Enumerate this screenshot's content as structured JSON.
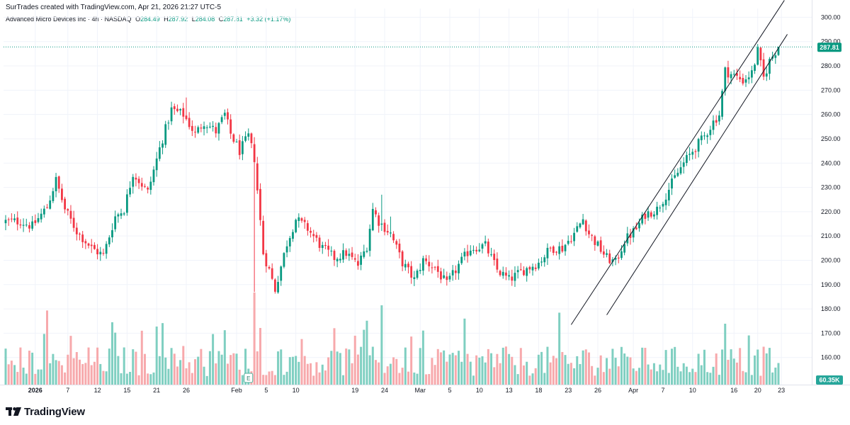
{
  "header": {
    "created_by": "SurTrades created with TradingView.com, Apr 21, 2026 21:27 UTC-5"
  },
  "legend": {
    "symbol": "Advanced Micro Devices Inc · 4h · NASDAQ",
    "o_label": "O",
    "o": "284.49",
    "h_label": "H",
    "h": "287.92",
    "l_label": "L",
    "l": "284.08",
    "c_label": "C",
    "c": "287.81",
    "change": "+3.32 (+1.17%)"
  },
  "footer": {
    "logo_text": "TradingView"
  },
  "colors": {
    "up": "#089981",
    "down": "#F23645",
    "up_volume": "#7FCFC1",
    "down_volume": "#F7A9AC",
    "price_badge": "#089981",
    "volume_badge": "#26A69A",
    "grid": "#F0F3FA"
  },
  "chart_data": {
    "type": "candlestick",
    "symbol": "AMD",
    "timeframe": "4h",
    "y_axis": {
      "ticks": [
        300,
        290,
        280,
        270,
        260,
        250,
        240,
        230,
        220,
        210,
        200,
        190,
        180,
        170,
        160
      ],
      "range": [
        146.5,
        304.5
      ]
    },
    "x_axis": {
      "labels": [
        "2026",
        "7",
        "12",
        "15",
        "21",
        "26",
        "Feb",
        "5",
        "10",
        "19",
        "24",
        "Mar",
        "5",
        "10",
        "13",
        "18",
        "23",
        "26",
        "Apr",
        "7",
        "10",
        "16",
        "20",
        "23"
      ],
      "label_bar_index": [
        10,
        21,
        31,
        41,
        51,
        61,
        78,
        88,
        98,
        118,
        128,
        140,
        150,
        160,
        170,
        180,
        190,
        200,
        212,
        222,
        232,
        246,
        254,
        262
      ]
    },
    "last_price": "287.81",
    "price_line_level": 287.81,
    "last_volume": "60.35K",
    "earnings_marker": {
      "label": "E",
      "bar_index": 82
    },
    "channel_lines": [
      {
        "from": [
          191,
          173.5
        ],
        "to": [
          263,
          307
        ]
      },
      {
        "from": [
          203,
          177.5
        ],
        "to": [
          264,
          293
        ]
      }
    ],
    "anchors": [
      [
        0,
        216
      ],
      [
        5,
        216
      ],
      [
        9,
        214
      ],
      [
        14,
        222
      ],
      [
        17,
        233
      ],
      [
        20,
        221
      ],
      [
        24,
        212
      ],
      [
        29,
        205
      ],
      [
        33,
        202
      ],
      [
        37,
        218
      ],
      [
        40,
        221
      ],
      [
        43,
        236
      ],
      [
        48,
        228
      ],
      [
        52,
        246
      ],
      [
        56,
        262
      ],
      [
        60,
        260
      ],
      [
        64,
        252
      ],
      [
        67,
        257
      ],
      [
        71,
        253
      ],
      [
        74,
        260
      ],
      [
        76,
        252
      ],
      [
        79,
        245
      ],
      [
        82,
        251
      ],
      [
        84,
        242
      ],
      [
        86,
        216
      ],
      [
        87,
        203
      ],
      [
        89,
        196
      ],
      [
        91,
        188
      ],
      [
        95,
        207
      ],
      [
        98,
        217
      ],
      [
        102,
        213
      ],
      [
        107,
        205
      ],
      [
        111,
        201
      ],
      [
        115,
        203
      ],
      [
        119,
        198
      ],
      [
        122,
        206
      ],
      [
        124,
        221
      ],
      [
        126,
        216
      ],
      [
        130,
        211
      ],
      [
        134,
        199
      ],
      [
        138,
        192
      ],
      [
        141,
        200
      ],
      [
        145,
        197
      ],
      [
        149,
        190
      ],
      [
        153,
        198
      ],
      [
        157,
        205
      ],
      [
        162,
        206
      ],
      [
        166,
        196
      ],
      [
        170,
        192
      ],
      [
        175,
        196
      ],
      [
        180,
        199
      ],
      [
        184,
        205
      ],
      [
        188,
        205
      ],
      [
        192,
        211
      ],
      [
        195,
        217
      ],
      [
        197,
        211
      ],
      [
        200,
        206
      ],
      [
        203,
        201
      ],
      [
        206,
        199
      ],
      [
        209,
        208
      ],
      [
        213,
        213
      ],
      [
        216,
        219
      ],
      [
        220,
        221
      ],
      [
        223,
        227
      ],
      [
        226,
        234
      ],
      [
        229,
        240
      ],
      [
        232,
        245
      ],
      [
        236,
        251
      ],
      [
        239,
        257
      ],
      [
        241,
        260
      ],
      [
        243,
        278
      ],
      [
        246,
        276
      ],
      [
        249,
        274
      ],
      [
        252,
        277
      ],
      [
        254,
        286
      ],
      [
        256,
        275
      ],
      [
        258,
        282
      ],
      [
        261,
        288
      ]
    ],
    "volume_scale": {
      "range": [
        0,
        300
      ],
      "note": "volume in thousands (K)"
    }
  }
}
